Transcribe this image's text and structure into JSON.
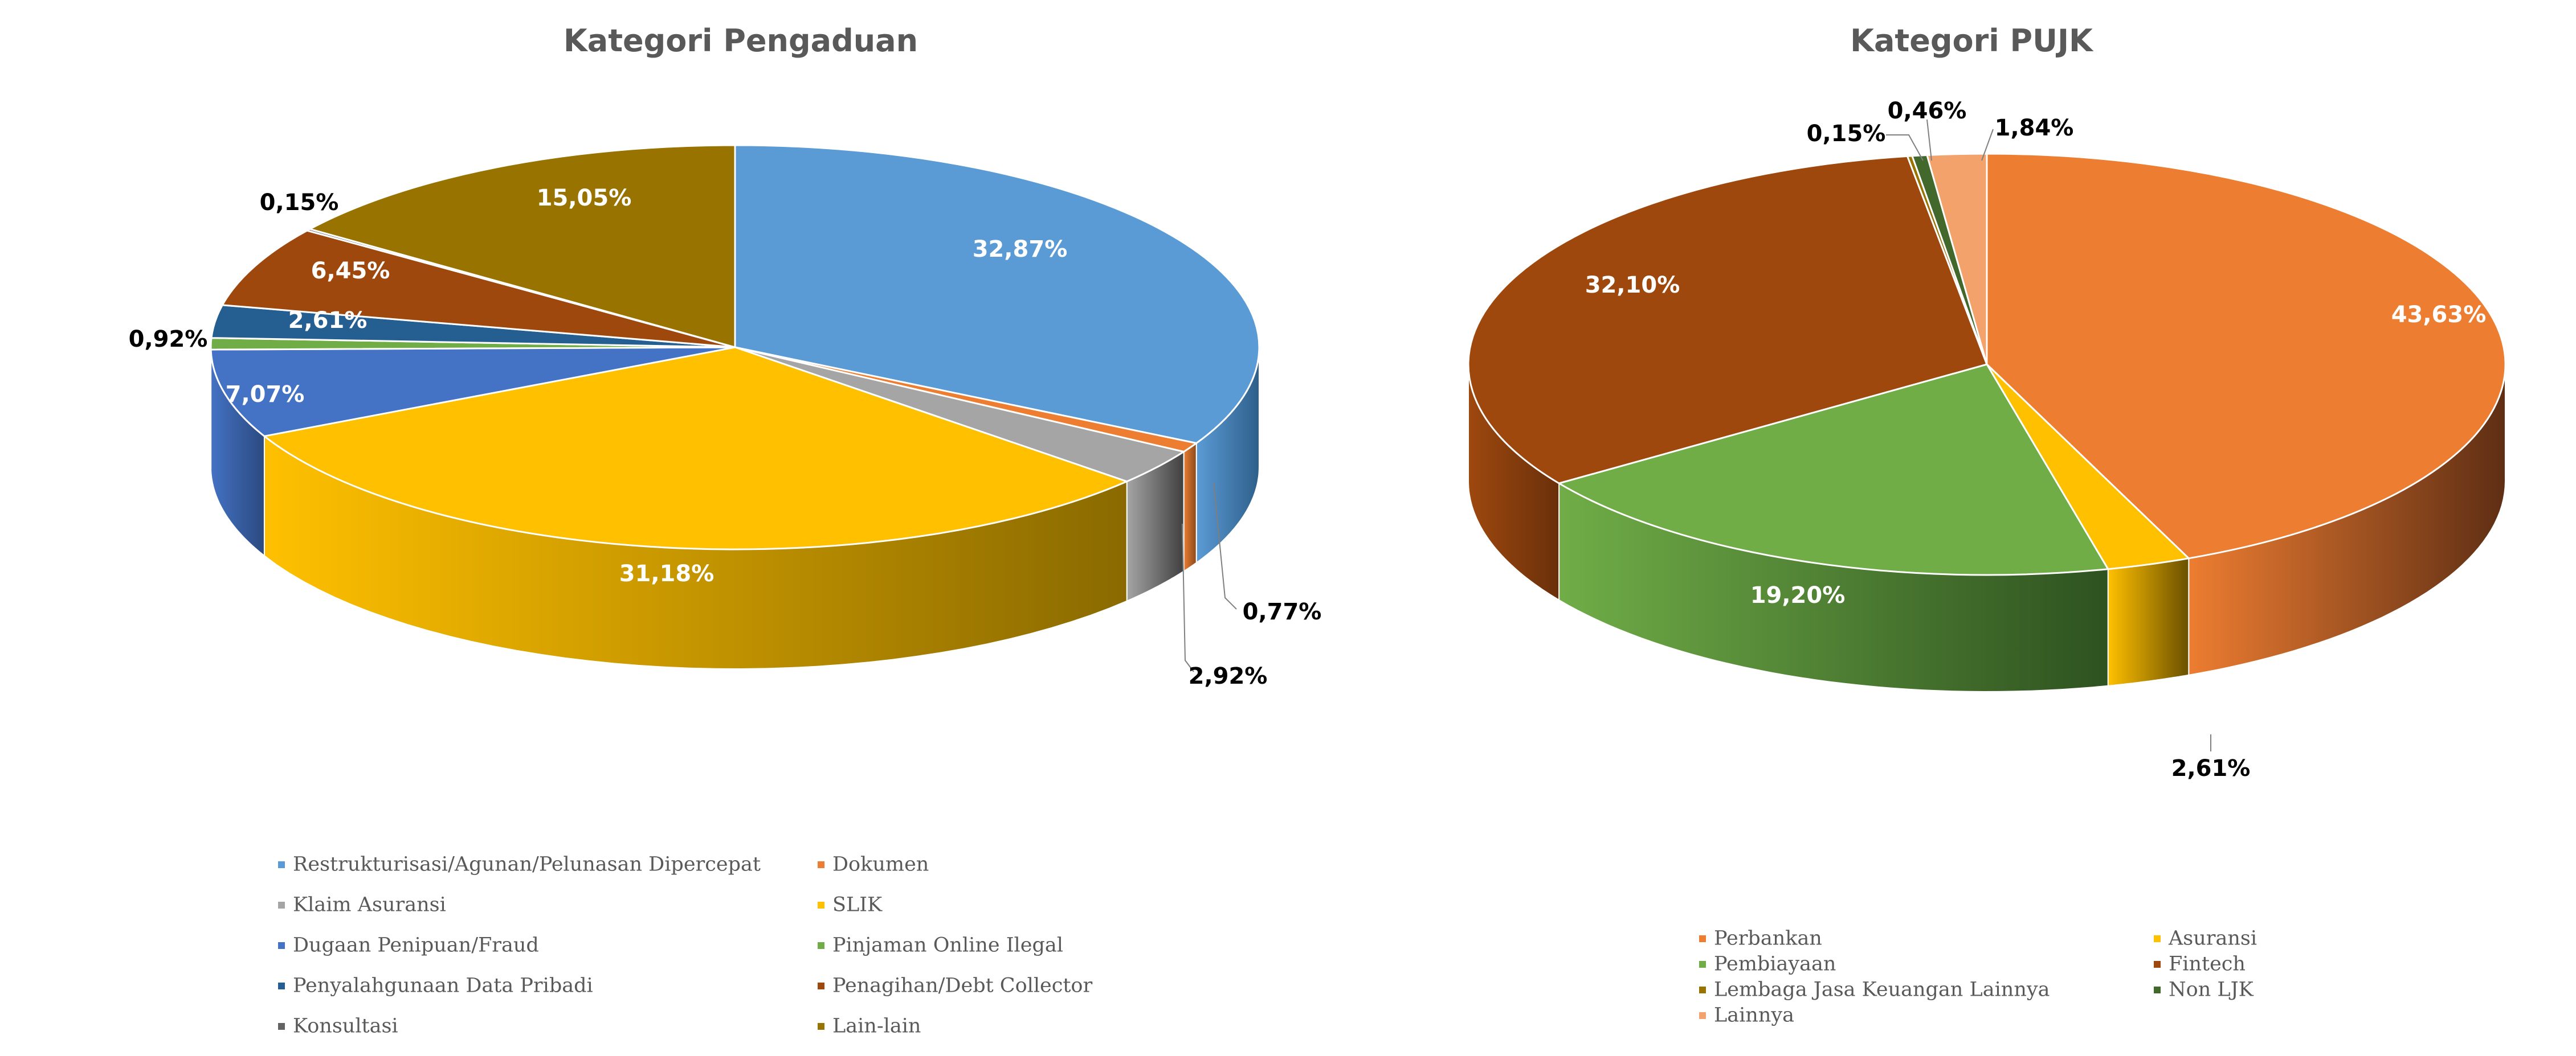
{
  "chart_data": [
    {
      "type": "pie",
      "title": "Kategori Pengaduan",
      "unit": "%",
      "legend_position": "bottom",
      "slices": [
        {
          "name": "Restrukturisasi/Agunan/Pelunasan Dipercepat",
          "value": 32.87,
          "label": "32,87%",
          "color": "#5B9BD5",
          "side_color": "#2E5F8A"
        },
        {
          "name": "Dokumen",
          "value": 0.77,
          "label": "0,77%",
          "color": "#ED7D31",
          "side_color": "#8A4A1A"
        },
        {
          "name": "Klaim Asuransi",
          "value": 2.92,
          "label": "2,92%",
          "color": "#A5A5A5",
          "side_color": "#404040"
        },
        {
          "name": "SLIK",
          "value": 31.18,
          "label": "31,18%",
          "color": "#FFC000",
          "side_color": "#8A6A00"
        },
        {
          "name": "Dugaan Penipuan/Fraud",
          "value": 7.07,
          "label": "7,07%",
          "color": "#4472C4",
          "side_color": "#2B4A80"
        },
        {
          "name": "Pinjaman Online Ilegal",
          "value": 0.92,
          "label": "0,92%",
          "color": "#70AD47",
          "side_color": "#3F6A26"
        },
        {
          "name": "Penyalahgunaan Data Pribadi",
          "value": 2.61,
          "label": "2,61%",
          "color": "#255E91",
          "side_color": "#163A5A"
        },
        {
          "name": "Penagihan/Debt Collector",
          "value": 6.45,
          "label": "6,45%",
          "color": "#9E480E",
          "side_color": "#5E2A08"
        },
        {
          "name": "Konsultasi",
          "value": 0.15,
          "label": "0,15%",
          "color": "#636363",
          "side_color": "#3A3A3A"
        },
        {
          "name": "Lain-lain",
          "value": 15.05,
          "label": "15,05%",
          "color": "#997300",
          "side_color": "#5C4500"
        }
      ]
    },
    {
      "type": "pie",
      "title": "Kategori PUJK",
      "unit": "%",
      "legend_position": "bottom",
      "slices": [
        {
          "name": "Perbankan",
          "value": 43.63,
          "label": "43,63%",
          "color": "#ED7D31",
          "side_color": "#5E2E14"
        },
        {
          "name": "Asuransi",
          "value": 2.61,
          "label": "2,61%",
          "color": "#FFC000",
          "side_color": "#6A5000"
        },
        {
          "name": "Pembiayaan",
          "value": 19.2,
          "label": "19,20%",
          "color": "#70AD47",
          "side_color": "#2E5220"
        },
        {
          "name": "Fintech",
          "value": 32.1,
          "label": "32,10%",
          "color": "#9E480E",
          "side_color": "#6A300A"
        },
        {
          "name": "Lembaga Jasa Keuangan Lainnya",
          "value": 0.15,
          "label": "0,15%",
          "color": "#997300",
          "side_color": "#5C4500"
        },
        {
          "name": "Non LJK",
          "value": 0.46,
          "label": "0,46%",
          "color": "#43682B",
          "side_color": "#2A4218"
        },
        {
          "name": "Lainnya",
          "value": 1.84,
          "label": "1,84%",
          "color": "#F4A26B",
          "side_color": "#9A5A30"
        }
      ]
    }
  ]
}
